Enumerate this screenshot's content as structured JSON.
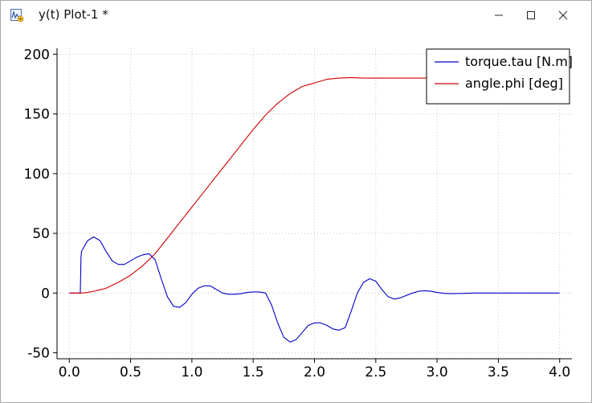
{
  "window": {
    "title": "y(t) Plot-1 *",
    "icon": "plot-window-icon",
    "controls": [
      "minimize-icon",
      "maximize-icon",
      "close-icon"
    ]
  },
  "chart_data": {
    "type": "line",
    "title": "",
    "xlabel": "",
    "ylabel": "",
    "xlim": [
      -0.1,
      4.1
    ],
    "ylim": [
      -55,
      205
    ],
    "x_ticks": [
      "0.0",
      "0.5",
      "1.0",
      "1.5",
      "2.0",
      "2.5",
      "3.0",
      "3.5",
      "4.0"
    ],
    "y_ticks": [
      "200",
      "150",
      "100",
      "50",
      "0",
      "-50"
    ],
    "grid": true,
    "legend_position": "top-right",
    "series": [
      {
        "name": "torque.tau [N.m]",
        "color": "#0000c8",
        "points": [
          [
            0,
            0
          ],
          [
            0.09,
            0
          ],
          [
            0.095,
            30
          ],
          [
            0.1,
            35
          ],
          [
            0.15,
            44
          ],
          [
            0.2,
            47
          ],
          [
            0.25,
            44
          ],
          [
            0.3,
            35
          ],
          [
            0.35,
            27
          ],
          [
            0.4,
            24
          ],
          [
            0.45,
            24
          ],
          [
            0.5,
            27
          ],
          [
            0.55,
            30
          ],
          [
            0.6,
            32
          ],
          [
            0.65,
            33
          ],
          [
            0.7,
            28
          ],
          [
            0.75,
            12
          ],
          [
            0.8,
            -3
          ],
          [
            0.85,
            -11
          ],
          [
            0.9,
            -12
          ],
          [
            0.95,
            -8
          ],
          [
            1.0,
            -1
          ],
          [
            1.05,
            4
          ],
          [
            1.1,
            6
          ],
          [
            1.15,
            6
          ],
          [
            1.2,
            3
          ],
          [
            1.25,
            0
          ],
          [
            1.3,
            -1
          ],
          [
            1.35,
            -1
          ],
          [
            1.4,
            -0.5
          ],
          [
            1.45,
            0.5
          ],
          [
            1.5,
            1
          ],
          [
            1.55,
            1
          ],
          [
            1.6,
            0
          ],
          [
            1.65,
            -10
          ],
          [
            1.7,
            -25
          ],
          [
            1.75,
            -37
          ],
          [
            1.8,
            -41
          ],
          [
            1.85,
            -39
          ],
          [
            1.9,
            -33
          ],
          [
            1.95,
            -27
          ],
          [
            2.0,
            -25
          ],
          [
            2.05,
            -25
          ],
          [
            2.1,
            -27
          ],
          [
            2.15,
            -30
          ],
          [
            2.2,
            -31
          ],
          [
            2.25,
            -29
          ],
          [
            2.3,
            -15
          ],
          [
            2.35,
            0
          ],
          [
            2.4,
            9
          ],
          [
            2.45,
            12
          ],
          [
            2.5,
            10
          ],
          [
            2.55,
            3
          ],
          [
            2.6,
            -3
          ],
          [
            2.65,
            -5
          ],
          [
            2.7,
            -4
          ],
          [
            2.75,
            -2
          ],
          [
            2.8,
            0
          ],
          [
            2.85,
            1.5
          ],
          [
            2.9,
            2
          ],
          [
            2.95,
            1.5
          ],
          [
            3.0,
            0.5
          ],
          [
            3.05,
            -0.2
          ],
          [
            3.1,
            -0.5
          ],
          [
            3.2,
            -0.3
          ],
          [
            3.3,
            0
          ],
          [
            4.0,
            0
          ]
        ]
      },
      {
        "name": "angle.phi [deg]",
        "color": "#d00000",
        "points": [
          [
            0,
            0
          ],
          [
            0.1,
            0
          ],
          [
            0.15,
            0.5
          ],
          [
            0.2,
            1.5
          ],
          [
            0.3,
            4
          ],
          [
            0.4,
            9
          ],
          [
            0.5,
            15
          ],
          [
            0.6,
            23
          ],
          [
            0.7,
            33
          ],
          [
            0.8,
            46
          ],
          [
            0.9,
            59
          ],
          [
            1.0,
            72
          ],
          [
            1.1,
            85
          ],
          [
            1.2,
            98
          ],
          [
            1.3,
            111
          ],
          [
            1.4,
            124
          ],
          [
            1.5,
            137
          ],
          [
            1.6,
            149
          ],
          [
            1.7,
            159
          ],
          [
            1.8,
            167
          ],
          [
            1.9,
            173
          ],
          [
            2.0,
            176
          ],
          [
            2.1,
            179
          ],
          [
            2.2,
            180
          ],
          [
            2.3,
            180.5
          ],
          [
            2.4,
            180
          ],
          [
            2.5,
            180
          ],
          [
            2.6,
            180
          ],
          [
            2.7,
            180
          ],
          [
            2.8,
            180
          ],
          [
            3.0,
            180
          ],
          [
            4.0,
            180
          ]
        ]
      }
    ]
  }
}
